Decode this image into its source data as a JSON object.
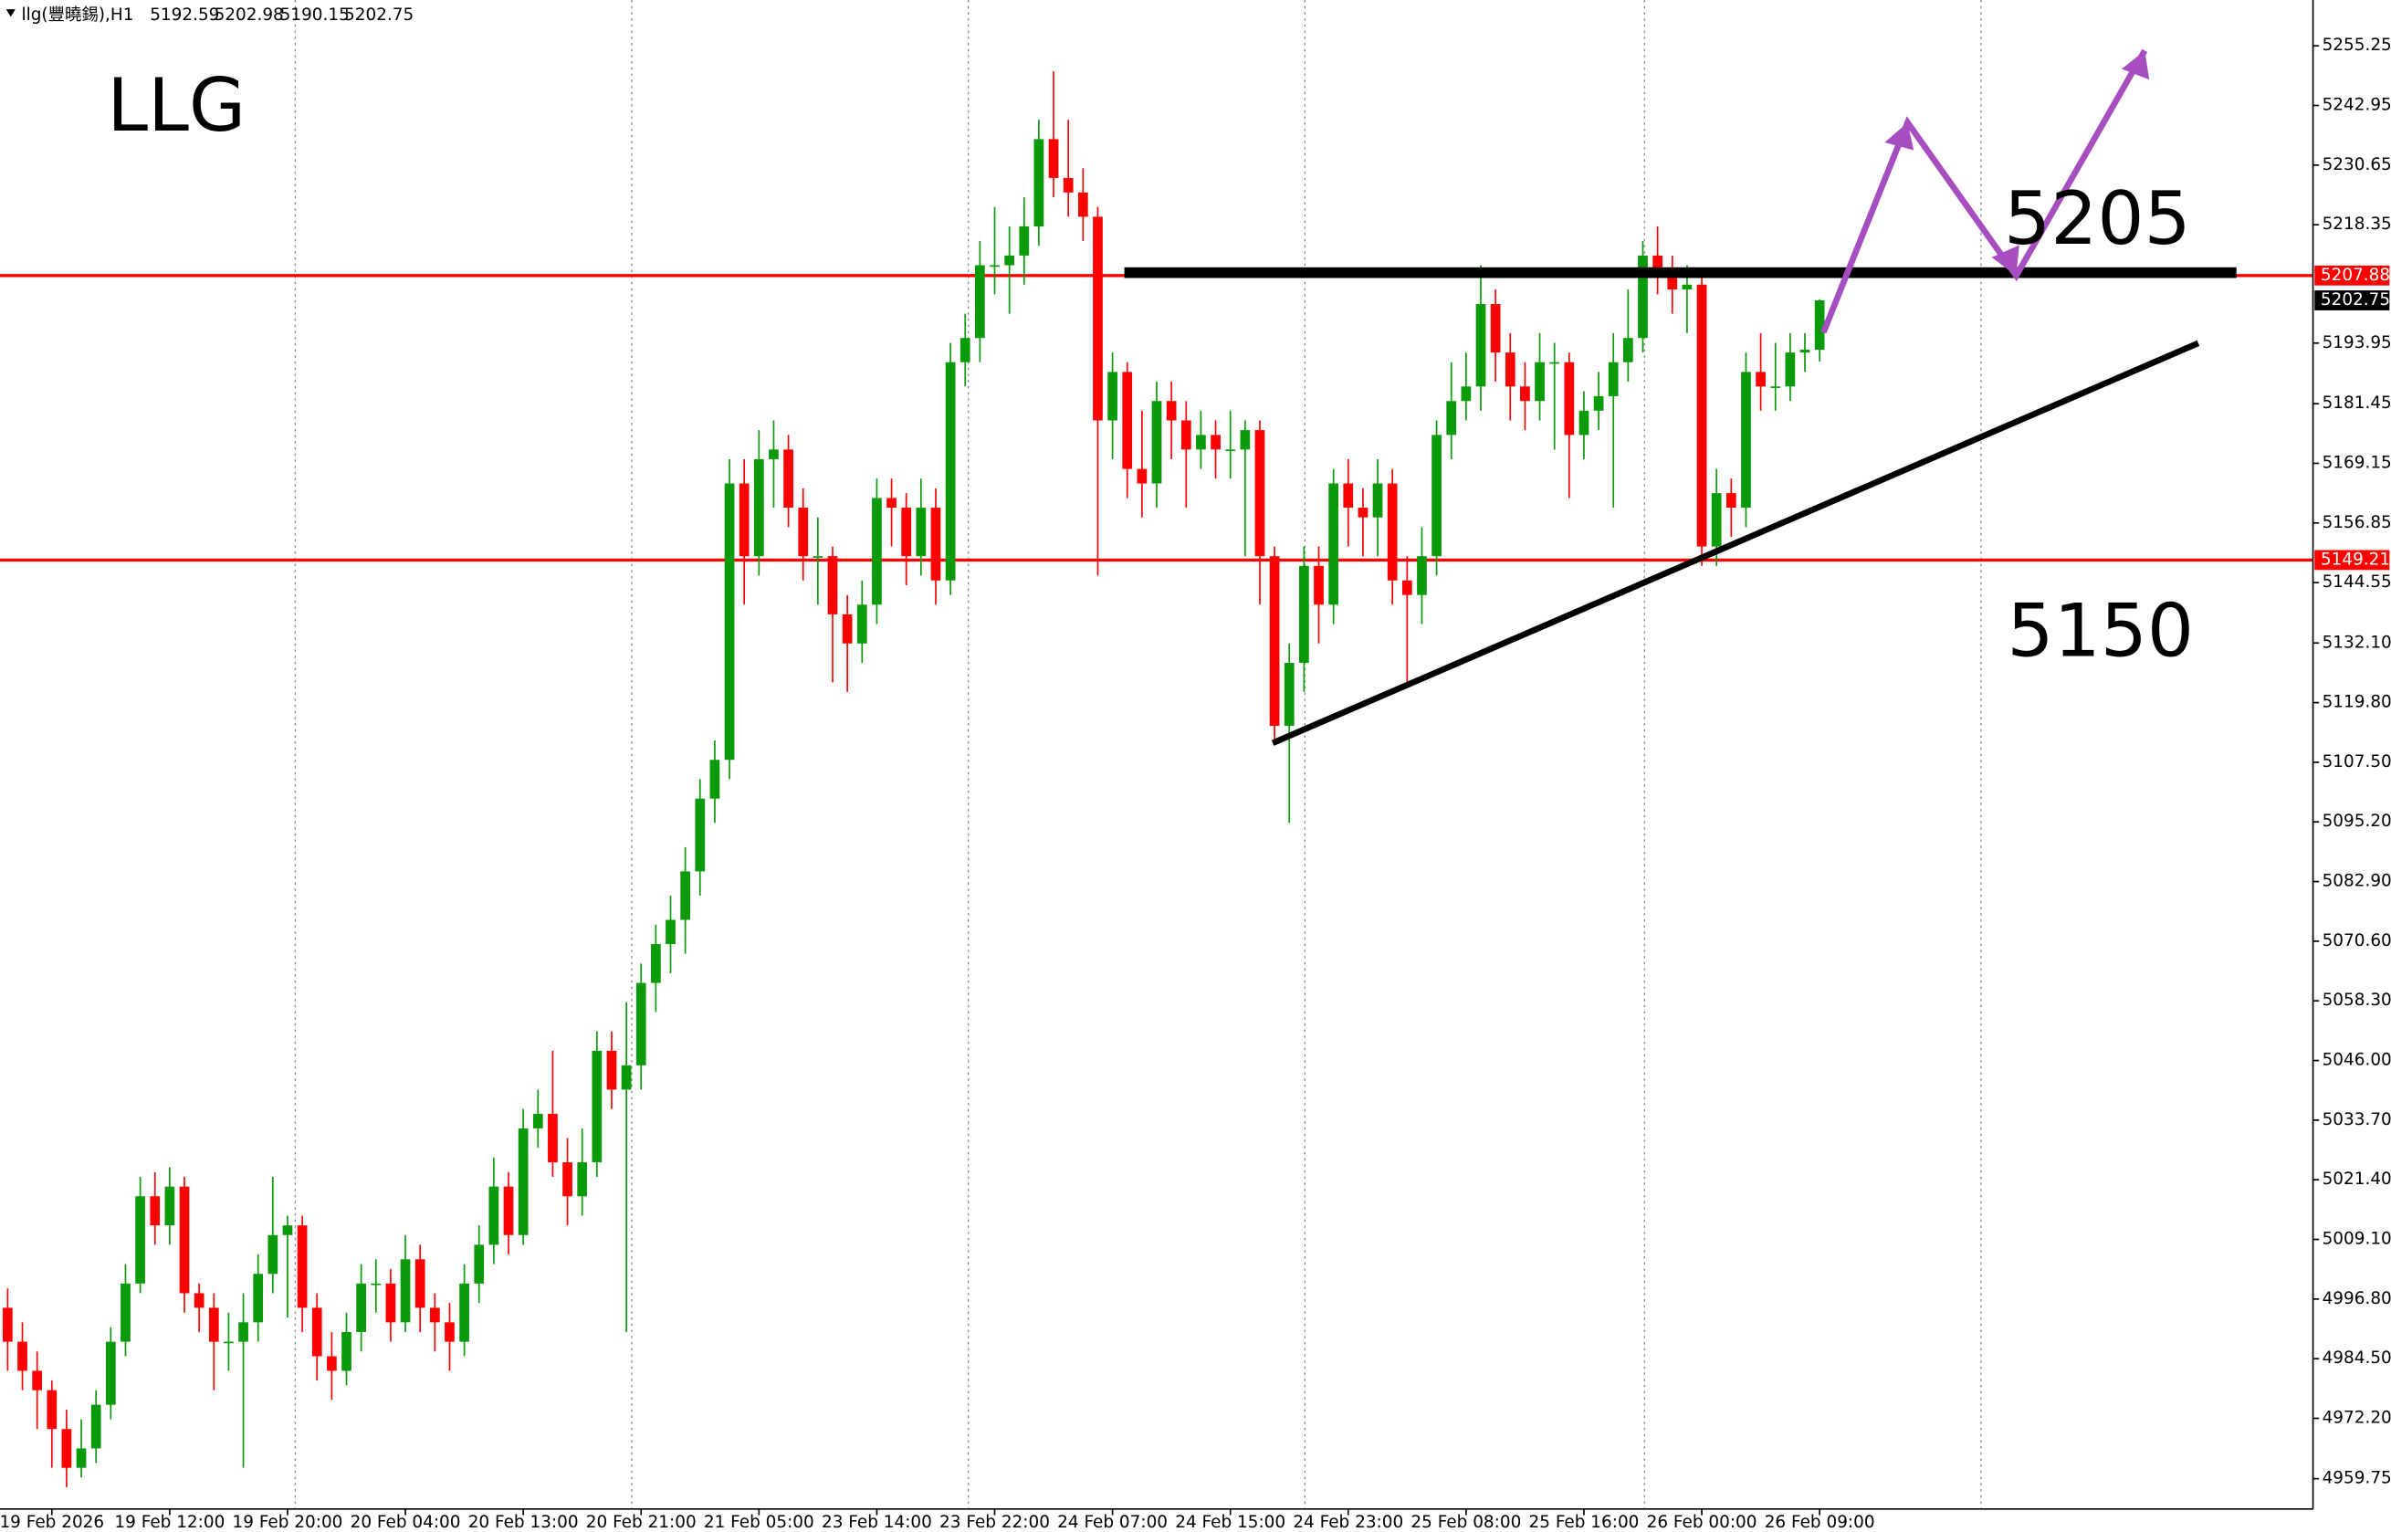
{
  "chart_data": {
    "type": "candlestick",
    "title": "llg(豐曉錫),H1",
    "annotations": [
      "LLG",
      "5205",
      "5150"
    ],
    "categories": [
      null,
      null,
      null,
      "19 Feb 2026",
      null,
      null,
      null,
      null,
      null,
      null,
      null,
      "19 Feb 12:00",
      null,
      null,
      null,
      null,
      null,
      null,
      null,
      "19 Feb 20:00",
      null,
      null,
      null,
      null,
      null,
      null,
      null,
      "20 Feb 04:00",
      null,
      null,
      null,
      null,
      null,
      null,
      null,
      "20 Feb 13:00",
      null,
      null,
      null,
      null,
      null,
      null,
      null,
      "20 Feb 21:00",
      null,
      null,
      null,
      null,
      null,
      null,
      null,
      "21 Feb 05:00",
      null,
      null,
      null,
      null,
      null,
      null,
      null,
      "23 Feb 14:00",
      null,
      null,
      null,
      null,
      null,
      null,
      null,
      "23 Feb 22:00",
      null,
      null,
      null,
      null,
      null,
      null,
      null,
      "24 Feb 07:00",
      null,
      null,
      null,
      null,
      null,
      null,
      null,
      "24 Feb 15:00",
      null,
      null,
      null,
      null,
      null,
      null,
      null,
      "24 Feb 23:00",
      null,
      null,
      null,
      null,
      null,
      null,
      null,
      "25 Feb 08:00",
      null,
      null,
      null,
      null,
      null,
      null,
      null,
      "25 Feb 16:00",
      null,
      null,
      null,
      null,
      null,
      null,
      null,
      "26 Feb 00:00",
      null,
      null,
      null,
      null,
      null,
      null,
      null,
      "26 Feb 09:00"
    ],
    "series": [
      {
        "name": "llg",
        "up_color": "#0a9a0a",
        "down_color": "#ff0000",
        "values": [
          [
            4995,
            4999,
            4982,
            4988
          ],
          [
            4988,
            4992,
            4978,
            4982
          ],
          [
            4982,
            4986,
            4970,
            4978
          ],
          [
            4978,
            4980,
            4962,
            4970
          ],
          [
            4970,
            4974,
            4958,
            4962
          ],
          [
            4962,
            4972,
            4960,
            4966
          ],
          [
            4966,
            4978,
            4963,
            4975
          ],
          [
            4975,
            4991,
            4972,
            4988
          ],
          [
            4988,
            5004,
            4985,
            5000
          ],
          [
            5000,
            5022,
            4998,
            5018
          ],
          [
            5018,
            5023,
            5008,
            5012
          ],
          [
            5012,
            5024,
            5008,
            5020
          ],
          [
            5020,
            5022,
            4994,
            4998
          ],
          [
            4998,
            5000,
            4990,
            4995
          ],
          [
            4995,
            4998,
            4978,
            4988
          ],
          [
            4988,
            4994,
            4982,
            4988
          ],
          [
            4988,
            4998,
            4962,
            4992
          ],
          [
            4992,
            5006,
            4988,
            5002
          ],
          [
            5002,
            5022,
            4998,
            5010
          ],
          [
            5010,
            5014,
            4993,
            5012
          ],
          [
            5012,
            5014,
            4990,
            4995
          ],
          [
            4995,
            4998,
            4980,
            4985
          ],
          [
            4985,
            4990,
            4976,
            4982
          ],
          [
            4982,
            4994,
            4979,
            4990
          ],
          [
            4990,
            5004,
            4986,
            5000
          ],
          [
            5000,
            5005,
            4994,
            5000
          ],
          [
            5000,
            5003,
            4988,
            4992
          ],
          [
            4992,
            5010,
            4990,
            5005
          ],
          [
            5005,
            5008,
            4990,
            4995
          ],
          [
            4995,
            4998,
            4986,
            4992
          ],
          [
            4992,
            4996,
            4982,
            4988
          ],
          [
            4988,
            5004,
            4985,
            5000
          ],
          [
            5000,
            5012,
            4996,
            5008
          ],
          [
            5008,
            5026,
            5004,
            5020
          ],
          [
            5020,
            5023,
            5006,
            5010
          ],
          [
            5010,
            5036,
            5008,
            5032
          ],
          [
            5032,
            5040,
            5028,
            5035
          ],
          [
            5035,
            5048,
            5022,
            5025
          ],
          [
            5025,
            5030,
            5012,
            5018
          ],
          [
            5018,
            5032,
            5014,
            5025
          ],
          [
            5025,
            5052,
            5022,
            5048
          ],
          [
            5048,
            5052,
            5036,
            5040
          ],
          [
            5040,
            5058,
            4990,
            5045
          ],
          [
            5045,
            5066,
            5040,
            5062
          ],
          [
            5062,
            5074,
            5056,
            5070
          ],
          [
            5070,
            5080,
            5064,
            5075
          ],
          [
            5075,
            5090,
            5068,
            5085
          ],
          [
            5085,
            5104,
            5080,
            5100
          ],
          [
            5100,
            5112,
            5095,
            5108
          ],
          [
            5108,
            5170,
            5104,
            5165
          ],
          [
            5165,
            5170,
            5140,
            5150
          ],
          [
            5150,
            5176,
            5146,
            5170
          ],
          [
            5170,
            5178,
            5160,
            5172
          ],
          [
            5172,
            5175,
            5156,
            5160
          ],
          [
            5160,
            5164,
            5145,
            5150
          ],
          [
            5150,
            5158,
            5140,
            5150
          ],
          [
            5150,
            5152,
            5124,
            5138
          ],
          [
            5138,
            5142,
            5122,
            5132
          ],
          [
            5132,
            5145,
            5128,
            5140
          ],
          [
            5140,
            5166,
            5136,
            5162
          ],
          [
            5162,
            5166,
            5152,
            5160
          ],
          [
            5160,
            5163,
            5144,
            5150
          ],
          [
            5150,
            5166,
            5146,
            5160
          ],
          [
            5160,
            5164,
            5140,
            5145
          ],
          [
            5145,
            5194,
            5142,
            5190
          ],
          [
            5190,
            5200,
            5185,
            5195
          ],
          [
            5195,
            5215,
            5190,
            5210
          ],
          [
            5210,
            5222,
            5204,
            5210
          ],
          [
            5210,
            5218,
            5200,
            5212
          ],
          [
            5212,
            5224,
            5206,
            5218
          ],
          [
            5218,
            5240,
            5214,
            5236
          ],
          [
            5236,
            5250,
            5224,
            5228
          ],
          [
            5228,
            5240,
            5220,
            5225
          ],
          [
            5225,
            5230,
            5215,
            5220
          ],
          [
            5220,
            5222,
            5146,
            5178
          ],
          [
            5178,
            5192,
            5170,
            5188
          ],
          [
            5188,
            5190,
            5162,
            5168
          ],
          [
            5168,
            5180,
            5158,
            5165
          ],
          [
            5165,
            5186,
            5160,
            5182
          ],
          [
            5182,
            5186,
            5170,
            5178
          ],
          [
            5178,
            5182,
            5160,
            5172
          ],
          [
            5172,
            5180,
            5168,
            5175
          ],
          [
            5175,
            5178,
            5166,
            5172
          ],
          [
            5172,
            5180,
            5166,
            5172
          ],
          [
            5172,
            5178,
            5150,
            5176
          ],
          [
            5176,
            5178,
            5140,
            5150
          ],
          [
            5150,
            5152,
            5112,
            5115
          ],
          [
            5115,
            5132,
            5095,
            5128
          ],
          [
            5128,
            5152,
            5122,
            5148
          ],
          [
            5148,
            5152,
            5132,
            5140
          ],
          [
            5140,
            5168,
            5136,
            5165
          ],
          [
            5165,
            5170,
            5152,
            5160
          ],
          [
            5160,
            5164,
            5150,
            5158
          ],
          [
            5158,
            5170,
            5150,
            5165
          ],
          [
            5165,
            5168,
            5140,
            5145
          ],
          [
            5145,
            5150,
            5124,
            5142
          ],
          [
            5142,
            5156,
            5136,
            5150
          ],
          [
            5150,
            5178,
            5146,
            5175
          ],
          [
            5175,
            5190,
            5170,
            5182
          ],
          [
            5182,
            5192,
            5178,
            5185
          ],
          [
            5185,
            5210,
            5180,
            5202
          ],
          [
            5202,
            5205,
            5186,
            5192
          ],
          [
            5192,
            5196,
            5178,
            5185
          ],
          [
            5185,
            5190,
            5176,
            5182
          ],
          [
            5182,
            5196,
            5178,
            5190
          ],
          [
            5190,
            5194,
            5172,
            5190
          ],
          [
            5190,
            5192,
            5162,
            5175
          ],
          [
            5175,
            5184,
            5170,
            5180
          ],
          [
            5180,
            5188,
            5176,
            5183
          ],
          [
            5183,
            5196,
            5160,
            5190
          ],
          [
            5190,
            5205,
            5186,
            5195
          ],
          [
            5195,
            5215,
            5192,
            5212
          ],
          [
            5212,
            5218,
            5204,
            5208
          ],
          [
            5208,
            5212,
            5200,
            5205
          ],
          [
            5205,
            5210,
            5196,
            5206
          ],
          [
            5206,
            5208,
            5148,
            5152
          ],
          [
            5152,
            5168,
            5148,
            5163
          ],
          [
            5163,
            5166,
            5154,
            5160
          ],
          [
            5160,
            5192,
            5156,
            5188
          ],
          [
            5188,
            5196,
            5180,
            5185
          ],
          [
            5185,
            5194,
            5180,
            5185
          ],
          [
            5185,
            5196,
            5182,
            5192
          ],
          [
            5192,
            5196,
            5188,
            5192.59
          ],
          [
            5192.59,
            5202.98,
            5190.15,
            5202.75
          ]
        ]
      }
    ],
    "levels": [
      {
        "value": 5207.88,
        "color": "#ff0000"
      },
      {
        "value": 5149.21,
        "color": "#ff0000"
      }
    ],
    "ylim": [
      4953.5,
      5264.7
    ],
    "yticks": [
      5255.25,
      5242.95,
      5230.65,
      5218.35,
      5193.95,
      5181.45,
      5169.15,
      5156.85,
      5144.55,
      {
        "value": 5132.1,
        "label": "5132.10"
      },
      {
        "value": 5119.8,
        "label": "5119.80"
      },
      {
        "value": 5107.5,
        "label": "5107.50"
      },
      {
        "value": 5095.2,
        "label": "5095.20"
      },
      {
        "value": 5082.9,
        "label": "5082.90"
      },
      {
        "value": 5070.6,
        "label": "5070.60"
      },
      {
        "value": 5058.3,
        "label": "5058.30"
      },
      {
        "value": 5046,
        "label": "5046.00"
      },
      {
        "value": 5033.7,
        "label": "5033.70"
      },
      {
        "value": 5021.4,
        "label": "5021.40"
      },
      {
        "value": 5009.1,
        "label": "5009.10"
      },
      {
        "value": 4996.8,
        "label": "4996.80"
      },
      {
        "value": 4984.5,
        "label": "4984.50"
      },
      {
        "value": 4972.2,
        "label": "4972.20"
      },
      4959.75
    ]
  }
}
